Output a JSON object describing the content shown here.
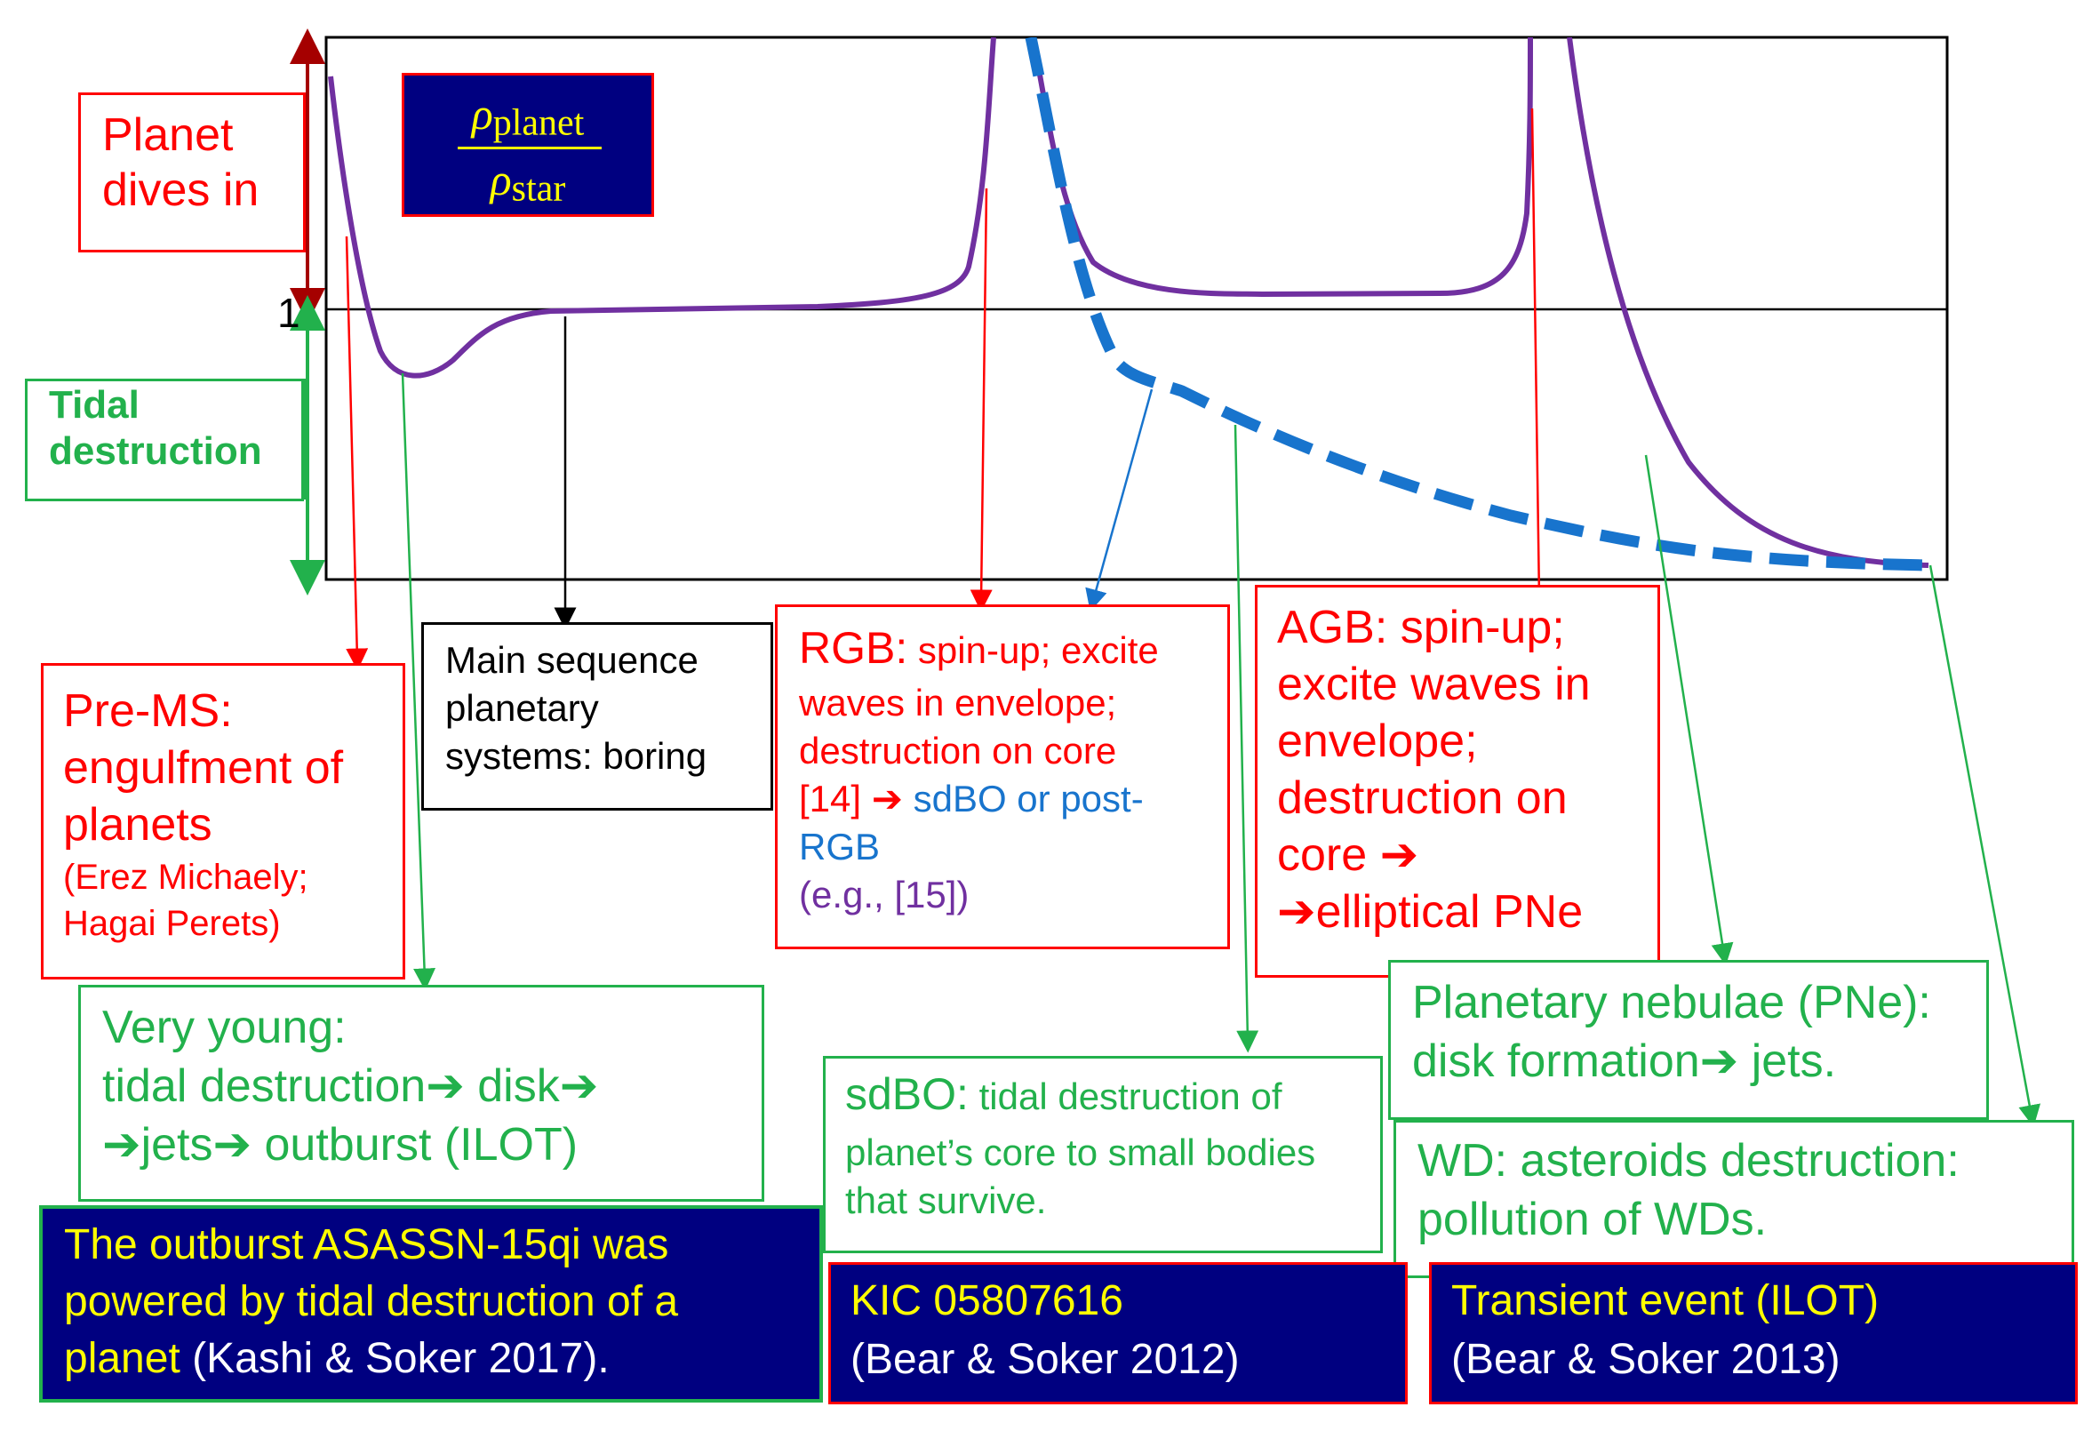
{
  "density_ratio": {
    "numerator": "ρ",
    "numerator_sub": "planet",
    "denominator": "ρ",
    "denominator_sub": "star"
  },
  "axis": {
    "unity_label": "1"
  },
  "left_labels": {
    "dives_in": [
      "Planet",
      "dives in"
    ],
    "tidal_destruction": [
      "Tidal",
      "destruction"
    ]
  },
  "boxes": {
    "pre_ms": {
      "title": [
        "Pre-MS:",
        "engulfment of",
        "planets"
      ],
      "ref": [
        "(Erez Michaely;",
        "Hagai Perets)"
      ]
    },
    "main_sequence": {
      "lines": [
        "Main sequence",
        "planetary",
        "systems: boring"
      ]
    },
    "rgb": {
      "title": "RGB:",
      "line1": " spin-up; excite",
      "line2": "waves in envelope;",
      "line3": "destruction on core",
      "line4_ref": "[14] ➔ ",
      "line4_blue": "sdBO or post-",
      "line5_blue": "RGB",
      "line6_purple": "(e.g., [15])"
    },
    "agb": {
      "lines": [
        "AGB: spin-up;",
        "excite waves in",
        "envelope;",
        "destruction on",
        "core ➔",
        "➔elliptical PNe"
      ]
    },
    "very_young": {
      "lines": [
        "Very young:",
        "tidal destruction➔ disk➔",
        "➔jets➔ outburst (ILOT)"
      ]
    },
    "sdbo": {
      "title": "sdBO:",
      "line1": " tidal destruction of",
      "line2": "planet’s core to small bodies",
      "line3": "that survive."
    },
    "pne": {
      "lines": [
        "Planetary nebulae (PNe):",
        "disk formation➔ jets."
      ]
    },
    "wd": {
      "lines": [
        "WD: asteroids destruction:",
        "pollution of WDs."
      ]
    },
    "asassn": {
      "yellow1": "The outburst ASASSN-15qi was",
      "yellow2": "powered by tidal destruction of a",
      "yellow3": "planet",
      "white3": " (Kashi & Soker 2017)."
    },
    "kic": {
      "yellow": "KIC 05807616",
      "white": "(Bear & Soker 2012)"
    },
    "transient": {
      "yellow": "Transient event (ILOT)",
      "white": "(Bear & Soker 2013)"
    }
  },
  "colors": {
    "curve": "#7030a0",
    "dashed": "#1874cd",
    "red": "#ff0000",
    "green": "#22b14c",
    "navy": "#000080",
    "yellow": "#ffff00"
  }
}
